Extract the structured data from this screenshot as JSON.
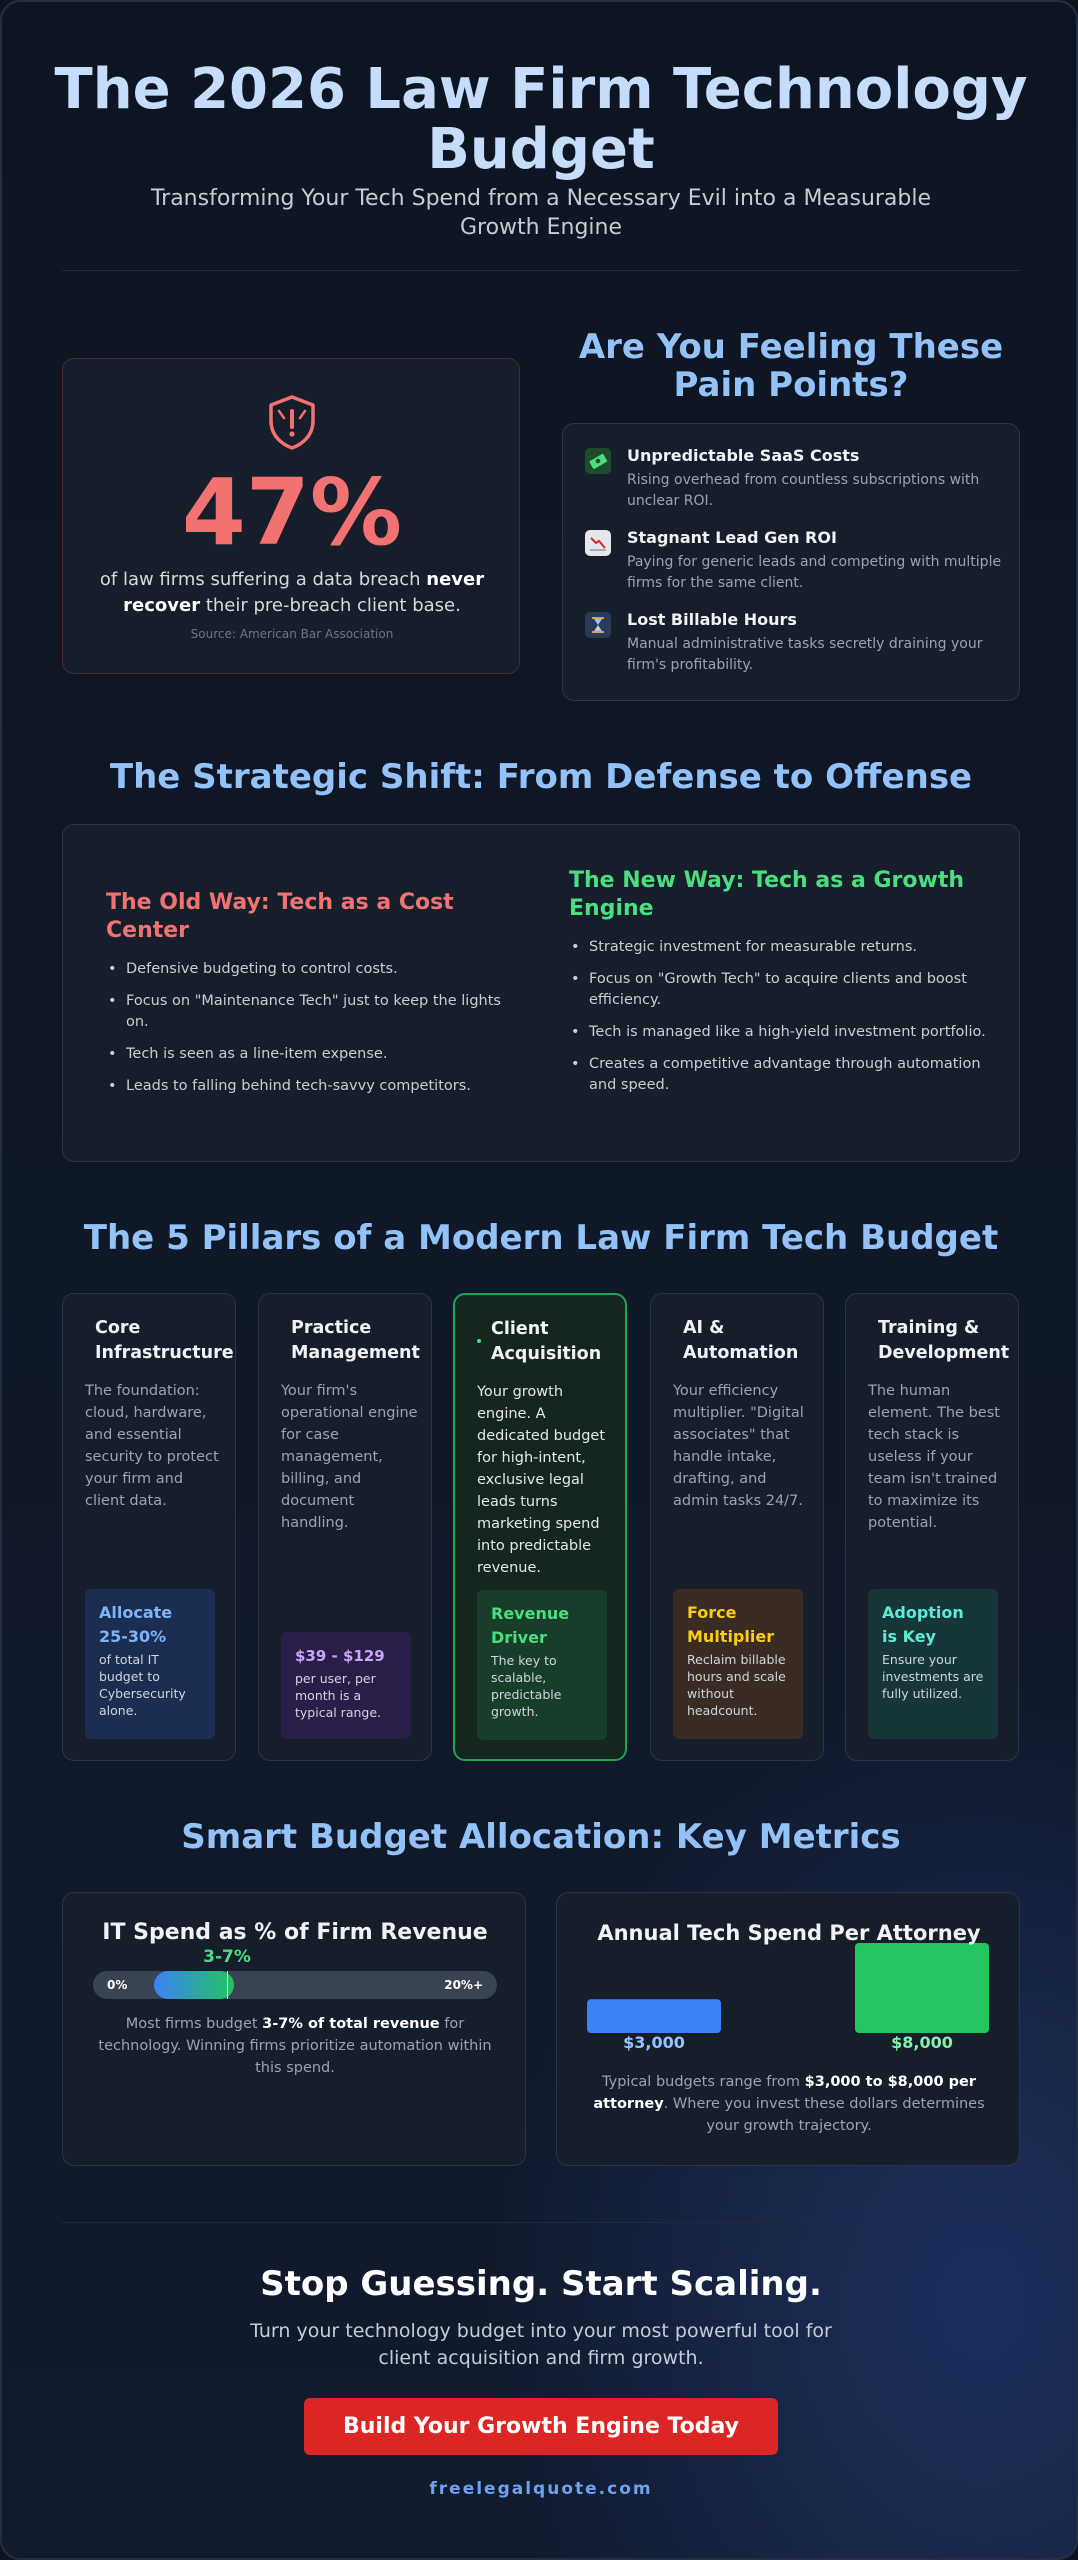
{
  "header": {
    "title": "The 2026 Law Firm Technology Budget",
    "subtitle": "Transforming Your Tech Spend from a Necessary Evil into a Measurable Growth Engine"
  },
  "stat": {
    "percent": "47%",
    "text_pre": "of law firms suffering a data breach ",
    "text_bold": "never recover",
    "text_post": " their pre-breach client base.",
    "source": "Source: American Bar Association"
  },
  "pain": {
    "title": "Are You Feeling These Pain Points?",
    "items": [
      {
        "icon": "money-icon",
        "title": "Unpredictable SaaS Costs",
        "desc": "Rising overhead from countless subscriptions with unclear ROI."
      },
      {
        "icon": "chart-down-icon",
        "title": "Stagnant Lead Gen ROI",
        "desc": "Paying for generic leads and competing with multiple firms for the same client."
      },
      {
        "icon": "hourglass-icon",
        "title": "Lost Billable Hours",
        "desc": "Manual administrative tasks secretly draining your firm's profitability."
      }
    ]
  },
  "shift": {
    "title": "The Strategic Shift: From Defense to Offense",
    "old": {
      "title": "The Old Way: Tech as a Cost Center",
      "items": [
        "Defensive budgeting to control costs.",
        "Focus on \"Maintenance Tech\" just to keep the lights on.",
        "Tech is seen as a line-item expense.",
        "Leads to falling behind tech-savvy competitors."
      ]
    },
    "new": {
      "title": "The New Way: Tech as a Growth Engine",
      "items": [
        "Strategic investment for measurable returns.",
        "Focus on \"Growth Tech\" to acquire clients and boost efficiency.",
        "Tech is managed like a high-yield investment portfolio.",
        "Creates a competitive advantage through automation and speed."
      ]
    }
  },
  "pillars": {
    "title": "The 5 Pillars of a Modern Law Firm Tech Budget",
    "items": [
      {
        "name": "Core Infrastructure",
        "desc": "The foundation: cloud, hardware, and essential security to protect your firm and client data.",
        "box_title": "Allocate 25-30%",
        "box_desc": "of total IT budget to Cybersecurity alone."
      },
      {
        "name": "Practice Management",
        "desc": "Your firm's operational engine for case management, billing, and document handling.",
        "box_title": "$39 - $129",
        "box_desc": "per user, per month is a typical range."
      },
      {
        "name": "Client Acquisition",
        "desc": "Your growth engine. A dedicated budget for high-intent, exclusive legal leads turns marketing spend into predictable revenue.",
        "box_title": "Revenue Driver",
        "box_desc": "The key to scalable, predictable growth."
      },
      {
        "name": "AI & Automation",
        "desc": "Your efficiency multiplier. \"Digital associates\" that handle intake, drafting, and admin tasks 24/7.",
        "box_title": "Force Multiplier",
        "box_desc": "Reclaim billable hours and scale without headcount."
      },
      {
        "name": "Training & Development",
        "desc": "The human element. The best tech stack is useless if your team isn't trained to maximize its potential.",
        "box_title": "Adoption is Key",
        "box_desc": "Ensure your investments are fully utilized."
      }
    ]
  },
  "metrics": {
    "title": "Smart Budget Allocation: Key Metrics",
    "it_spend": {
      "title": "IT Spend as % of Firm Revenue",
      "marker": "3-7%",
      "min": "0%",
      "max": "20%+",
      "range_start_pct": 3,
      "range_end_pct": 7,
      "desc_pre": "Most firms budget ",
      "desc_bold": "3-7% of total revenue",
      "desc_post": " for technology. Winning firms prioritize automation within this spend."
    },
    "per_attorney": {
      "title": "Annual Tech Spend Per Attorney",
      "bars": [
        {
          "label": "$3,000",
          "value": 3000,
          "color": "#3b82f6"
        },
        {
          "label": "$8,000",
          "value": 8000,
          "color": "#22c55e"
        }
      ],
      "desc_pre": "Typical budgets range from ",
      "desc_bold": "$3,000 to $8,000 per attorney",
      "desc_post": ". Where you invest these dollars determines your growth trajectory."
    }
  },
  "cta": {
    "title": "Stop Guessing. Start Scaling.",
    "text": "Turn your technology budget into your most powerful tool for client acquisition and firm growth.",
    "button": "Build Your Growth Engine Today",
    "footer": "freelegalquote.com"
  }
}
